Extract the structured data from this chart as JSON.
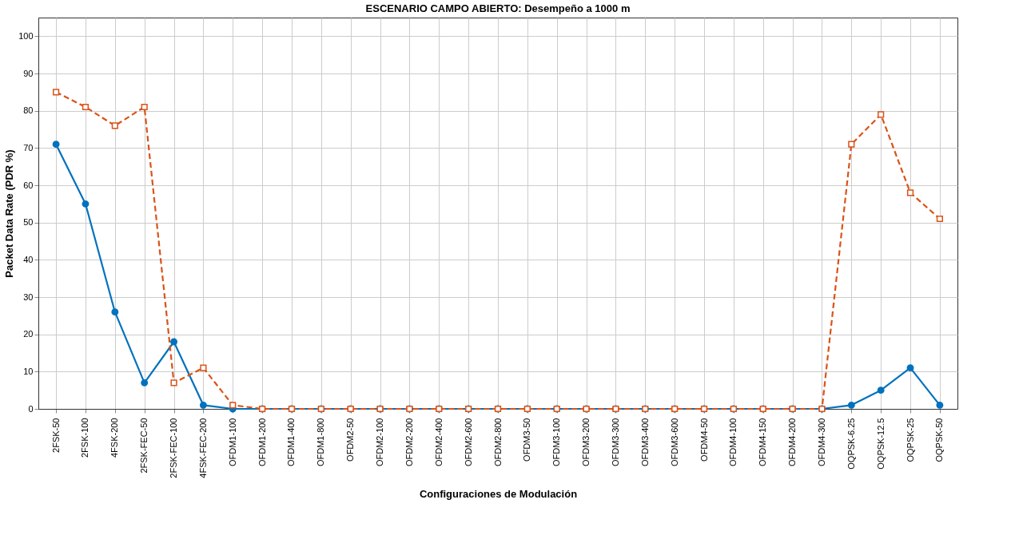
{
  "chart_data": {
    "type": "line",
    "title": "ESCENARIO CAMPO ABIERTO: Desempeño a 1000 m",
    "xlabel": "Configuraciones de Modulación",
    "ylabel": "Packet Data Rate (PDR %)",
    "categories": [
      "2FSK-50",
      "2FSK-100",
      "4FSK-200",
      "2FSK-FEC-50",
      "2FSK-FEC-100",
      "4FSK-FEC-200",
      "OFDM1-100",
      "OFDM1-200",
      "OFDM1-400",
      "OFDM1-800",
      "OFDM2-50",
      "OFDM2-100",
      "OFDM2-200",
      "OFDM2-400",
      "OFDM2-600",
      "OFDM2-800",
      "OFDM3-50",
      "OFDM3-100",
      "OFDM3-200",
      "OFDM3-300",
      "OFDM3-400",
      "OFDM3-600",
      "OFDM4-50",
      "OFDM4-100",
      "OFDM4-150",
      "OFDM4-200",
      "OFDM4-300",
      "OQPSK-6.25",
      "OQPSK-12.5",
      "OQPSK-25",
      "OQPSK-50"
    ],
    "series": [
      {
        "color": "#0072bd",
        "marker": "circle",
        "line_style": "solid",
        "values": [
          71,
          55,
          26,
          7,
          18,
          1,
          0,
          0,
          0,
          0,
          0,
          0,
          0,
          0,
          0,
          0,
          0,
          0,
          0,
          0,
          0,
          0,
          0,
          0,
          0,
          0,
          0,
          1,
          5,
          11,
          1
        ]
      },
      {
        "color": "#d95319",
        "marker": "square",
        "line_style": "dashed",
        "values": [
          85,
          81,
          76,
          81,
          7,
          11,
          1,
          0,
          0,
          0,
          0,
          0,
          0,
          0,
          0,
          0,
          0,
          0,
          0,
          0,
          0,
          0,
          0,
          0,
          0,
          0,
          0,
          71,
          79,
          58,
          51
        ]
      }
    ],
    "ylim": [
      0,
      105
    ],
    "yticks": [
      0,
      10,
      20,
      30,
      40,
      50,
      60,
      70,
      80,
      90,
      100
    ],
    "grid": true
  }
}
